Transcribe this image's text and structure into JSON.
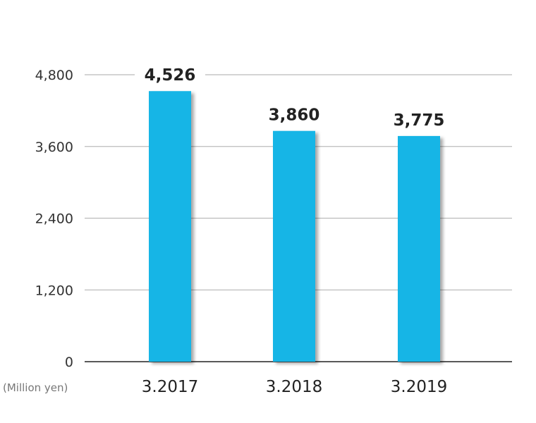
{
  "chart_data": {
    "type": "bar",
    "categories": [
      "3.2017",
      "3.2018",
      "3.2019"
    ],
    "values": [
      4526,
      3860,
      3775
    ],
    "data_labels": [
      "4,526",
      "3,860",
      "3,775"
    ],
    "yticks": [
      0,
      1200,
      2400,
      3600,
      4800
    ],
    "ytick_labels": [
      "0",
      "1,200",
      "2,400",
      "3,600",
      "4,800"
    ],
    "ylim": [
      0,
      4800
    ],
    "unit_label": "(Million yen)",
    "bar_color": "#13b5e6",
    "grid": true,
    "legend": "none"
  }
}
